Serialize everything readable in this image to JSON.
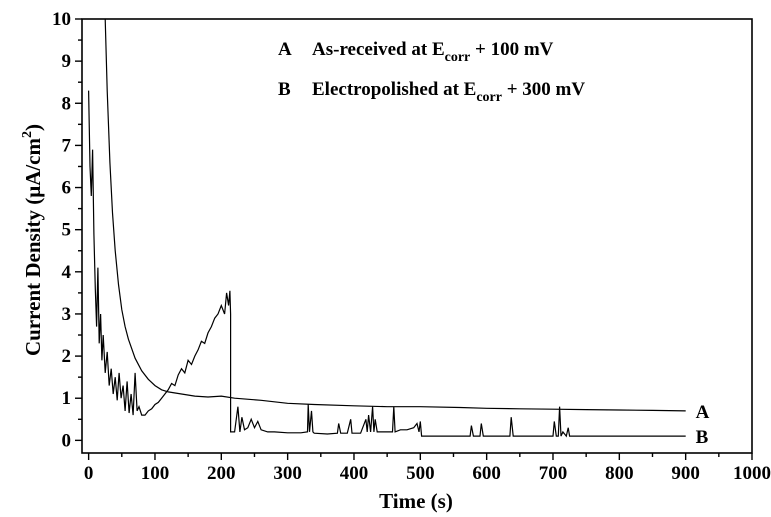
{
  "chart_data": {
    "type": "line",
    "xlabel": "Time (s)",
    "ylabel_main": "Current Density (μA/cm",
    "ylabel_sup": "2",
    "ylabel_close": ")",
    "xlim": [
      -10,
      1000
    ],
    "ylim": [
      -0.3,
      10
    ],
    "xticks": [
      0,
      100,
      200,
      300,
      400,
      500,
      600,
      700,
      800,
      900,
      1000
    ],
    "yticks": [
      0,
      1,
      2,
      3,
      4,
      5,
      6,
      7,
      8,
      9,
      10
    ],
    "grid": false,
    "legend_position": "top-right",
    "legend": [
      {
        "key": "A",
        "text_main": "As-received at E",
        "text_sub": "corr",
        "text_tail": " + 100 mV"
      },
      {
        "key": "B",
        "text_main": "Electropolished at E",
        "text_sub": "corr",
        "text_tail": " + 300 mV"
      }
    ],
    "series": [
      {
        "name": "A",
        "end_label": "A",
        "x": [
          25,
          28,
          32,
          36,
          40,
          45,
          50,
          55,
          60,
          70,
          80,
          90,
          100,
          110,
          120,
          140,
          160,
          180,
          200,
          220,
          260,
          300,
          340,
          400,
          450,
          500,
          560,
          600,
          650,
          700,
          750,
          800,
          850,
          900
        ],
        "y": [
          10.0,
          8.3,
          6.6,
          5.4,
          4.5,
          3.7,
          3.1,
          2.7,
          2.4,
          1.95,
          1.65,
          1.45,
          1.3,
          1.2,
          1.15,
          1.1,
          1.05,
          1.03,
          1.05,
          1.0,
          0.95,
          0.88,
          0.85,
          0.82,
          0.8,
          0.8,
          0.78,
          0.76,
          0.75,
          0.74,
          0.73,
          0.72,
          0.71,
          0.7
        ]
      },
      {
        "name": "B",
        "end_label": "B",
        "x": [
          0,
          2,
          4,
          6,
          8,
          10,
          12,
          14,
          16,
          18,
          20,
          22,
          25,
          28,
          31,
          34,
          37,
          40,
          43,
          46,
          49,
          52,
          55,
          58,
          61,
          64,
          67,
          70,
          73,
          76,
          80,
          85,
          90,
          95,
          100,
          105,
          110,
          115,
          120,
          125,
          130,
          135,
          140,
          145,
          150,
          155,
          160,
          165,
          170,
          175,
          180,
          185,
          190,
          195,
          200,
          205,
          208,
          211,
          213,
          214,
          214,
          216,
          220,
          225,
          228,
          231,
          235,
          240,
          245,
          250,
          255,
          260,
          270,
          280,
          300,
          320,
          330,
          331,
          333,
          336,
          338,
          340,
          360,
          375,
          377,
          380,
          390,
          395,
          397,
          400,
          410,
          418,
          420,
          422,
          425,
          428,
          430,
          432,
          435,
          440,
          450,
          458,
          460,
          462,
          470,
          480,
          490,
          495,
          498,
          500,
          502,
          505,
          520,
          560,
          575,
          577,
          580,
          590,
          592,
          595,
          620,
          635,
          637,
          640,
          660,
          690,
          700,
          702,
          705,
          708,
          710,
          712,
          715,
          720,
          723,
          725,
          730,
          760,
          800,
          850,
          900
        ],
        "y": [
          8.3,
          6.5,
          5.8,
          6.9,
          4.9,
          3.6,
          2.7,
          4.1,
          2.3,
          3.0,
          1.9,
          2.5,
          1.6,
          2.1,
          1.3,
          1.7,
          1.1,
          1.5,
          0.95,
          1.6,
          1.0,
          1.3,
          0.7,
          1.4,
          0.65,
          1.1,
          0.6,
          1.6,
          0.7,
          0.8,
          0.6,
          0.6,
          0.7,
          0.75,
          0.85,
          0.9,
          1.0,
          1.1,
          1.2,
          1.35,
          1.3,
          1.55,
          1.7,
          1.6,
          1.9,
          1.8,
          2.0,
          2.15,
          2.35,
          2.3,
          2.55,
          2.7,
          2.9,
          3.0,
          3.2,
          3.0,
          3.5,
          3.2,
          3.55,
          3.0,
          0.2,
          0.2,
          0.2,
          0.8,
          0.2,
          0.55,
          0.25,
          0.3,
          0.5,
          0.3,
          0.45,
          0.25,
          0.2,
          0.2,
          0.18,
          0.18,
          0.2,
          0.85,
          0.2,
          0.7,
          0.2,
          0.17,
          0.15,
          0.17,
          0.4,
          0.17,
          0.17,
          0.5,
          0.17,
          0.17,
          0.17,
          0.5,
          0.2,
          0.6,
          0.2,
          0.8,
          0.2,
          0.5,
          0.2,
          0.2,
          0.2,
          0.2,
          0.8,
          0.2,
          0.25,
          0.25,
          0.3,
          0.4,
          0.2,
          0.45,
          0.1,
          0.1,
          0.1,
          0.1,
          0.1,
          0.35,
          0.1,
          0.1,
          0.4,
          0.1,
          0.1,
          0.1,
          0.55,
          0.1,
          0.1,
          0.1,
          0.1,
          0.45,
          0.1,
          0.1,
          0.8,
          0.1,
          0.2,
          0.1,
          0.3,
          0.1,
          0.1,
          0.1,
          0.1,
          0.1,
          0.1
        ]
      }
    ]
  }
}
